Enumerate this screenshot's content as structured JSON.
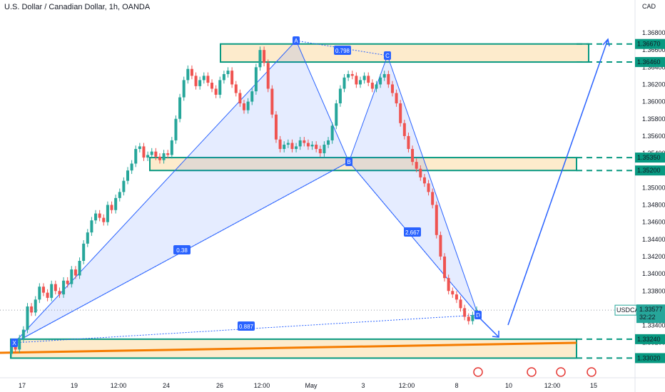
{
  "chart_data": {
    "type": "candlestick",
    "title": "U.S. Dollar / Canadian Dollar, 1h, OANDA",
    "currency_label": "CAD",
    "ylim": [
      1.327,
      1.37
    ],
    "y_ticks": [
      "1.36800",
      "1.36600",
      "1.36400",
      "1.36200",
      "1.36000",
      "1.35800",
      "1.35600",
      "1.35400",
      "1.35200",
      "1.35000",
      "1.34800",
      "1.34600",
      "1.34400",
      "1.34200",
      "1.34000",
      "1.33800",
      "1.33600",
      "1.33400",
      "1.33200",
      "1.33000",
      "1.32800"
    ],
    "x_ticks": [
      "17",
      "19",
      "12:00",
      "24",
      "26",
      "12:00",
      "May",
      "3",
      "12:00",
      "8",
      "10",
      "12:00",
      "15"
    ],
    "candles_close_path": [
      1.3315,
      1.3312,
      1.3325,
      1.3335,
      1.3362,
      1.3355,
      1.337,
      1.3385,
      1.3378,
      1.3372,
      1.3388,
      1.338,
      1.3376,
      1.3392,
      1.3388,
      1.3405,
      1.3398,
      1.3415,
      1.3435,
      1.3448,
      1.3462,
      1.347,
      1.3465,
      1.346,
      1.348,
      1.3474,
      1.3488,
      1.3495,
      1.3508,
      1.352,
      1.3528,
      1.3545,
      1.3548,
      1.3535,
      1.3538,
      1.3542,
      1.3536,
      1.3532,
      1.354,
      1.3538,
      1.3555,
      1.358,
      1.3605,
      1.3625,
      1.3638,
      1.363,
      1.3618,
      1.3625,
      1.363,
      1.3622,
      1.3615,
      1.3608,
      1.3625,
      1.3632,
      1.3636,
      1.362,
      1.361,
      1.3598,
      1.359,
      1.36,
      1.3612,
      1.364,
      1.366,
      1.3645,
      1.3615,
      1.3585,
      1.3556,
      1.3545,
      1.355,
      1.3552,
      1.3545,
      1.3548,
      1.3555,
      1.3552,
      1.3548,
      1.355,
      1.3545,
      1.354,
      1.355,
      1.3555,
      1.3572,
      1.3598,
      1.3615,
      1.3628,
      1.3632,
      1.363,
      1.362,
      1.3625,
      1.363,
      1.3622,
      1.3615,
      1.362,
      1.3628,
      1.3632,
      1.362,
      1.361,
      1.3598,
      1.3575,
      1.356,
      1.3545,
      1.353,
      1.3522,
      1.3512,
      1.3505,
      1.3495,
      1.348,
      1.3445,
      1.342,
      1.3395,
      1.338,
      1.3376,
      1.337,
      1.336,
      1.335,
      1.3345,
      1.3352,
      1.3358
    ],
    "current_price": {
      "symbol": "USDCAD",
      "price": "1.33577",
      "countdown": "32:22",
      "value": 1.33577
    },
    "horizontal_levels": [
      "1.36670",
      "1.36460",
      "1.35350",
      "1.35200",
      "1.33240",
      "1.33020"
    ],
    "zones": [
      {
        "y1": 1.3646,
        "y2": 1.3667
      },
      {
        "y1": 1.352,
        "y2": 1.3535
      },
      {
        "y1": 1.3302,
        "y2": 1.3324
      }
    ],
    "harmonic_points": [
      {
        "label": "X",
        "price": 1.3302
      },
      {
        "label": "A",
        "price": 1.3667
      },
      {
        "label": "B",
        "price": 1.352
      },
      {
        "label": "C",
        "price": 1.3646
      },
      {
        "label": "D",
        "price": 1.333
      }
    ],
    "ratios": [
      "0.798",
      "0.38",
      "2.667",
      "0.887"
    ],
    "colors": {
      "up": "#26a69a",
      "down": "#ef5350",
      "zone_fill": "#fdebcc",
      "zone_border": "#089981",
      "pattern": "#2962ff",
      "trend": "#f57c00"
    }
  }
}
